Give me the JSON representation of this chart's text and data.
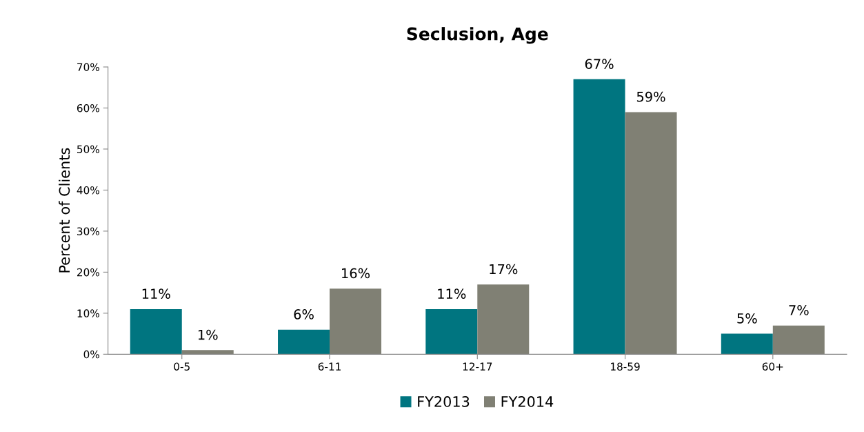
{
  "chart_data": {
    "type": "bar",
    "title": "Seclusion, Age",
    "ylabel": "Percent of Clients",
    "categories": [
      "0-5",
      "6-11",
      "12-17",
      "18-59",
      "60+"
    ],
    "series": [
      {
        "name": "FY2013",
        "color": "#007580",
        "values": [
          11,
          6,
          11,
          67,
          5
        ],
        "value_labels": [
          "11%",
          "6%",
          "11%",
          "67%",
          "5%"
        ]
      },
      {
        "name": "FY2014",
        "color": "#808074",
        "values": [
          1,
          16,
          17,
          59,
          7
        ],
        "value_labels": [
          "1%",
          "16%",
          "17%",
          "59%",
          "7%"
        ]
      }
    ],
    "ylim": [
      0,
      70
    ],
    "yticks": [
      {
        "value": 0,
        "label": "0%"
      },
      {
        "value": 10,
        "label": "10%"
      },
      {
        "value": 20,
        "label": "20%"
      },
      {
        "value": 30,
        "label": "30%"
      },
      {
        "value": 40,
        "label": "40%"
      },
      {
        "value": 50,
        "label": "50%"
      },
      {
        "value": 60,
        "label": "60%"
      },
      {
        "value": 70,
        "label": "70%"
      }
    ],
    "legend": "bottom"
  }
}
